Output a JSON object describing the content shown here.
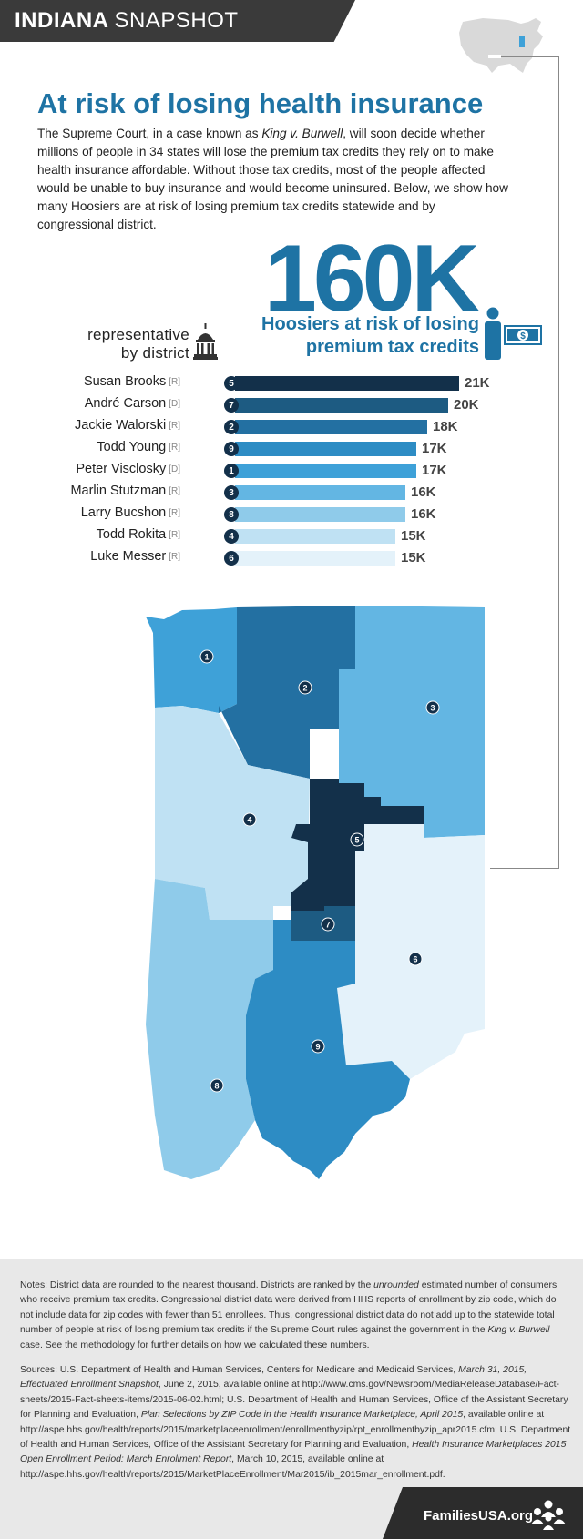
{
  "banner": {
    "state": "INDIANA",
    "subtitle": "SNAPSHOT"
  },
  "title": "At risk of losing health insurance",
  "intro": {
    "part1": "The Supreme Court, in a case known as ",
    "case_name": "King v. Burwell",
    "part2": ", will soon decide whether millions of people in 34 states will lose the premium tax credits they rely on to make health insurance affordable. Without those tax credits, most of the people affected would be unable to buy insurance and would become uninsured. Below, we show how many Hoosiers are at risk of losing premium tax credits statewide and by congressional district."
  },
  "statewide": {
    "value": "160K",
    "label_line1": "Hoosiers at risk of losing",
    "label_line2": "premium tax credits",
    "bill_symbol": "$"
  },
  "rep_header": {
    "line1": "representative",
    "line2": "by district"
  },
  "chart_data": {
    "type": "bar",
    "orientation": "horizontal",
    "categories": [
      "Susan Brooks",
      "André Carson",
      "Jackie Walorski",
      "Todd Young",
      "Peter Visclosky",
      "Marlin Stutzman",
      "Larry Bucshon",
      "Todd Rokita",
      "Luke Messer"
    ],
    "values": [
      21,
      20,
      18,
      17,
      17,
      16,
      16,
      15,
      15
    ],
    "value_labels": [
      "21K",
      "20K",
      "18K",
      "17K",
      "17K",
      "16K",
      "16K",
      "15K",
      "15K"
    ],
    "parties": [
      "[R]",
      "[D]",
      "[R]",
      "[R]",
      "[D]",
      "[R]",
      "[R]",
      "[R]",
      "[R]"
    ],
    "districts": [
      "5",
      "7",
      "2",
      "9",
      "1",
      "3",
      "8",
      "4",
      "6"
    ],
    "xlim": [
      0,
      21
    ],
    "colors": [
      "#13304a",
      "#1d5b82",
      "#2370a2",
      "#2d8cc4",
      "#3ea1d8",
      "#63b6e3",
      "#8fcbea",
      "#bfe1f3",
      "#e4f2fa"
    ]
  },
  "map": {
    "district_labels": [
      "1",
      "2",
      "3",
      "4",
      "5",
      "6",
      "7",
      "8",
      "9"
    ],
    "district_colors": {
      "1": "#3ea1d8",
      "2": "#2370a2",
      "3": "#63b6e3",
      "4": "#bfe1f3",
      "5": "#13304a",
      "6": "#e4f2fa",
      "7": "#1d5b82",
      "8": "#8fcbea",
      "9": "#2d8cc4"
    }
  },
  "notes": {
    "p1": "Notes: District data are rounded to the nearest thousand. Districts are ranked by the ",
    "unrounded": "unrounded",
    "p2": " estimated number of consumers who receive premium tax credits. Congressional district data were derived from HHS reports of enrollment by zip code, which do not include data for zip codes with fewer than 51 enrollees. Thus, congressional district data do not add up to the statewide total number of people at risk of losing premium tax credits if the Supreme Court rules against the government in the ",
    "case_name": "King v. Burwell",
    "p3": " case. See the methodology for further details on how we calculated these numbers."
  },
  "sources": {
    "s1": "Sources: U.S. Department of Health and Human Services, Centers for Medicare and Medicaid Services, ",
    "i1": "March 31, 2015, Effectuated Enrollment Snapshot",
    "s2": ", June 2, 2015, available online at http://www.cms.gov/Newsroom/MediaReleaseDatabase/Fact-sheets/2015-Fact-sheets-items/2015-06-02.html; U.S. Department of Health and Human Services, Office of the Assistant Secretary for Planning and Evaluation, ",
    "i2": "Plan Selections by ZIP Code in the Health Insurance Marketplace, April 2015",
    "s3": ", available online at http://aspe.hhs.gov/health/reports/2015/marketplaceenrollment/enrollmentbyzip/rpt_enrollmentbyzip_apr2015.cfm; U.S. Department of Health and Human Services, Office of the Assistant Secretary for Planning and Evaluation, ",
    "i3": "Health Insurance Marketplaces 2015 Open Enrollment Period: March Enrollment Report",
    "s4": ", March 10, 2015, available online at http://aspe.hhs.gov/health/reports/2015/MarketPlaceEnrollment/Mar2015/ib_2015mar_enrollment.pdf."
  },
  "footer": {
    "brand": "FamiliesUSA.org"
  }
}
